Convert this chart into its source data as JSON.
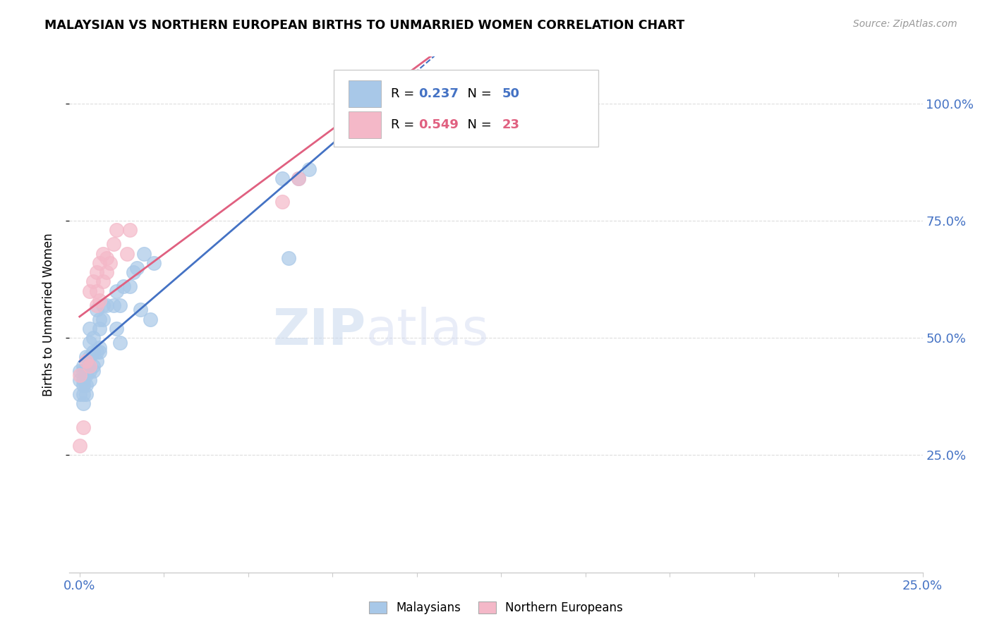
{
  "title": "MALAYSIAN VS NORTHERN EUROPEAN BIRTHS TO UNMARRIED WOMEN CORRELATION CHART",
  "source": "Source: ZipAtlas.com",
  "ylabel": "Births to Unmarried Women",
  "xlim": [
    0.0,
    0.25
  ],
  "ylim": [
    0.0,
    1.1
  ],
  "legend1_R": "0.237",
  "legend1_N": "50",
  "legend2_R": "0.549",
  "legend2_N": "23",
  "watermark_zip": "ZIP",
  "watermark_atlas": "atlas",
  "blue_color": "#a8c8e8",
  "pink_color": "#f4b8c8",
  "blue_line_color": "#4472c4",
  "pink_line_color": "#e06080",
  "ytick_color": "#4472c4",
  "xtick_color": "#4472c4",
  "grid_color": "#dddddd",
  "blue_x": [
    0.0,
    0.0,
    0.0,
    0.001,
    0.001,
    0.001,
    0.001,
    0.001,
    0.001,
    0.002,
    0.002,
    0.002,
    0.002,
    0.002,
    0.003,
    0.003,
    0.003,
    0.003,
    0.003,
    0.004,
    0.004,
    0.004,
    0.004,
    0.005,
    0.005,
    0.005,
    0.006,
    0.006,
    0.006,
    0.006,
    0.007,
    0.007,
    0.008,
    0.01,
    0.011,
    0.011,
    0.012,
    0.012,
    0.013,
    0.015,
    0.016,
    0.017,
    0.018,
    0.019,
    0.021,
    0.022,
    0.06,
    0.062,
    0.065,
    0.068
  ],
  "blue_y": [
    0.43,
    0.41,
    0.38,
    0.44,
    0.41,
    0.43,
    0.36,
    0.38,
    0.4,
    0.4,
    0.43,
    0.46,
    0.38,
    0.42,
    0.43,
    0.46,
    0.41,
    0.49,
    0.52,
    0.44,
    0.47,
    0.5,
    0.43,
    0.45,
    0.47,
    0.56,
    0.48,
    0.52,
    0.54,
    0.47,
    0.54,
    0.57,
    0.57,
    0.57,
    0.6,
    0.52,
    0.57,
    0.49,
    0.61,
    0.61,
    0.64,
    0.65,
    0.56,
    0.68,
    0.54,
    0.66,
    0.84,
    0.67,
    0.84,
    0.86
  ],
  "pink_x": [
    0.0,
    0.0,
    0.001,
    0.002,
    0.003,
    0.003,
    0.004,
    0.005,
    0.005,
    0.005,
    0.006,
    0.006,
    0.007,
    0.007,
    0.008,
    0.008,
    0.009,
    0.01,
    0.011,
    0.014,
    0.015,
    0.06,
    0.065
  ],
  "pink_y": [
    0.27,
    0.42,
    0.31,
    0.45,
    0.6,
    0.44,
    0.62,
    0.6,
    0.57,
    0.64,
    0.66,
    0.58,
    0.68,
    0.62,
    0.64,
    0.67,
    0.66,
    0.7,
    0.73,
    0.68,
    0.73,
    0.79,
    0.84
  ]
}
